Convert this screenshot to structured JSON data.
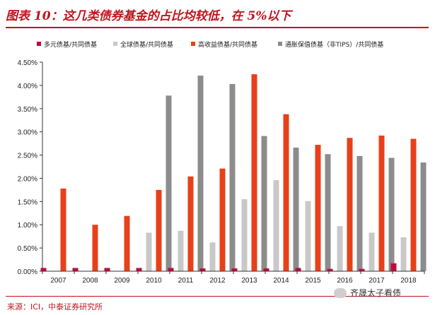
{
  "figure": {
    "title": "图表 10：这几类债券基金的占比均较低，在 5%以下",
    "source": "来源：ICI，中泰证券研究所",
    "watermark": "齐晟太子看债"
  },
  "chart_data": {
    "type": "bar",
    "categories": [
      "2007",
      "2008",
      "2009",
      "2010",
      "2011",
      "2012",
      "2013",
      "2014",
      "2015",
      "2016",
      "2017",
      "2018"
    ],
    "series": [
      {
        "name": "多元债基/共同债基",
        "color": "#c00b3c",
        "values": [
          0.07,
          0.07,
          0.07,
          0.07,
          0.07,
          0.06,
          0.06,
          0.06,
          0.07,
          0.05,
          0.05,
          0.17
        ]
      },
      {
        "name": "全球债基/共同债基",
        "color": "#c8c8c8",
        "values": [
          0,
          0,
          0,
          0.83,
          0.87,
          0.62,
          1.55,
          1.96,
          1.51,
          0.97,
          0.83,
          0.73
        ]
      },
      {
        "name": "高收益债基/共同债基",
        "color": "#e8401a",
        "values": [
          1.78,
          1.0,
          1.19,
          1.75,
          2.04,
          2.21,
          4.24,
          3.38,
          2.72,
          2.87,
          2.92,
          2.85
        ]
      },
      {
        "name": "通胀保值债基（非TIPS）/共同债基",
        "color": "#8c8c8c",
        "values": [
          0,
          0,
          0,
          3.78,
          4.21,
          4.03,
          2.91,
          2.66,
          2.52,
          2.48,
          2.44,
          2.34
        ]
      }
    ],
    "yticks": [
      "0.00%",
      "0.50%",
      "1.00%",
      "1.50%",
      "2.00%",
      "2.50%",
      "3.00%",
      "3.50%",
      "4.00%",
      "4.50%"
    ],
    "ylim": [
      0,
      4.5
    ],
    "legend_position": "top",
    "grid": false
  }
}
